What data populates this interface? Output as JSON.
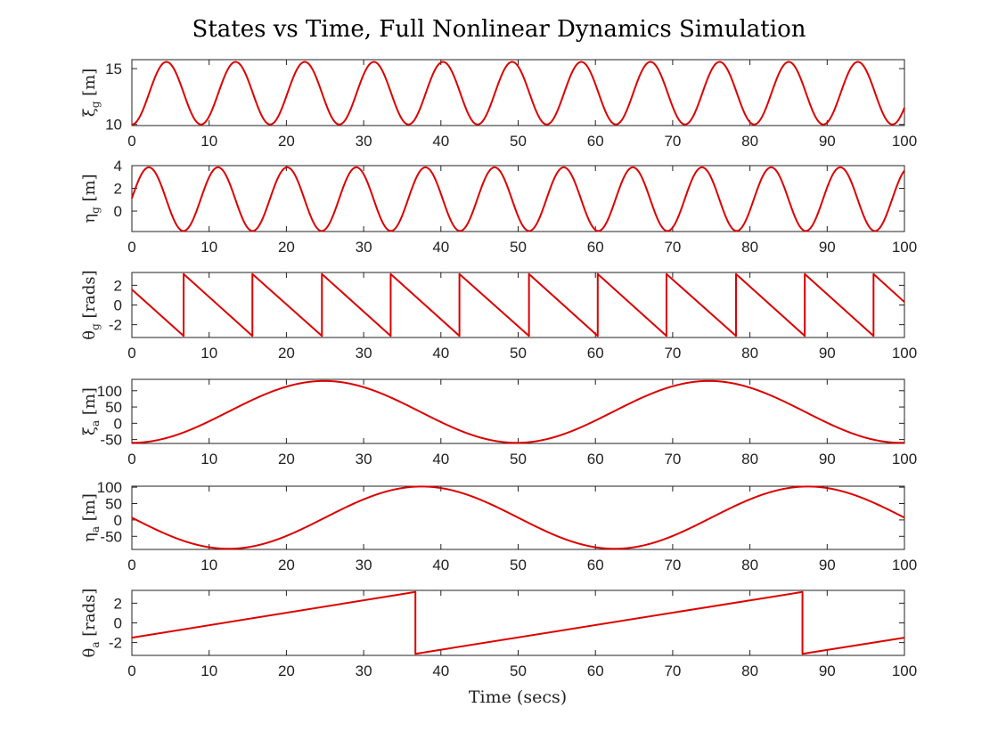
{
  "figure": {
    "title": "States vs Time, Full Nonlinear Dynamics Simulation",
    "xlabel": "Time (secs)",
    "series_color": "#dd0000"
  },
  "chart_data": [
    {
      "type": "line",
      "ylabel": {
        "symbol": "ξ",
        "subscript": "g",
        "unit": "[m]"
      },
      "xlim": [
        0,
        100
      ],
      "ylim": [
        9.9,
        15.8
      ],
      "xticks": [
        0,
        10,
        20,
        30,
        40,
        50,
        60,
        70,
        80,
        90,
        100
      ],
      "yticks": [
        10,
        15
      ],
      "series": [
        {
          "kind": "sine",
          "center": 12.8,
          "amplitude": 2.8,
          "period": 8.95,
          "phase_time": 4.45,
          "start": "trough"
        }
      ],
      "grid": false
    },
    {
      "type": "line",
      "ylabel": {
        "symbol": "η",
        "subscript": "g",
        "unit": "[m]"
      },
      "xlim": [
        0,
        100
      ],
      "ylim": [
        -1.8,
        4
      ],
      "xticks": [
        0,
        10,
        20,
        30,
        40,
        50,
        60,
        70,
        80,
        90,
        100
      ],
      "yticks": [
        0,
        2,
        4
      ],
      "series": [
        {
          "kind": "sine",
          "center": 1.05,
          "amplitude": 2.8,
          "period": 8.95,
          "phase_time": 2.2,
          "start": "peak"
        }
      ],
      "grid": false
    },
    {
      "type": "line",
      "ylabel": {
        "symbol": "θ",
        "subscript": "g",
        "unit": "[rads]"
      },
      "xlim": [
        0,
        100
      ],
      "ylim": [
        -3.3,
        3.3
      ],
      "xticks": [
        0,
        10,
        20,
        30,
        40,
        50,
        60,
        70,
        80,
        90,
        100
      ],
      "yticks": [
        -2,
        0,
        2
      ],
      "series": [
        {
          "kind": "sawtooth",
          "points": [
            [
              0,
              1.57
            ],
            [
              6.7,
              -3.14
            ],
            [
              6.7,
              3.14
            ],
            [
              15.6,
              -3.14
            ],
            [
              15.6,
              3.14
            ],
            [
              24.6,
              -3.14
            ],
            [
              24.6,
              3.14
            ],
            [
              33.5,
              -3.14
            ],
            [
              33.5,
              3.14
            ],
            [
              42.4,
              -3.14
            ],
            [
              42.4,
              3.14
            ],
            [
              51.4,
              -3.14
            ],
            [
              51.4,
              3.14
            ],
            [
              60.3,
              -3.14
            ],
            [
              60.3,
              3.14
            ],
            [
              69.2,
              -3.14
            ],
            [
              69.2,
              3.14
            ],
            [
              78.2,
              -3.14
            ],
            [
              78.2,
              3.14
            ],
            [
              87.1,
              -3.14
            ],
            [
              87.1,
              3.14
            ],
            [
              96.0,
              -3.14
            ],
            [
              96.0,
              3.14
            ],
            [
              100,
              0.3
            ]
          ]
        }
      ],
      "grid": false
    },
    {
      "type": "line",
      "ylabel": {
        "symbol": "ξ",
        "subscript": "a",
        "unit": "[m]"
      },
      "xlim": [
        0,
        100
      ],
      "ylim": [
        -62,
        135
      ],
      "xticks": [
        0,
        10,
        20,
        30,
        40,
        50,
        60,
        70,
        80,
        90,
        100
      ],
      "yticks": [
        -50,
        0,
        50,
        100
      ],
      "series": [
        {
          "kind": "sine",
          "center": 35,
          "amplitude": 95,
          "period": 49.8,
          "phase_time": 24.4,
          "start": "trough"
        }
      ],
      "grid": false
    },
    {
      "type": "line",
      "ylabel": {
        "symbol": "η",
        "subscript": "a",
        "unit": "[m]"
      },
      "xlim": [
        0,
        100
      ],
      "ylim": [
        -90,
        103
      ],
      "xticks": [
        0,
        10,
        20,
        30,
        40,
        50,
        60,
        70,
        80,
        90,
        100
      ],
      "yticks": [
        -50,
        0,
        50,
        100
      ],
      "series": [
        {
          "kind": "sine",
          "center": 7,
          "amplitude": 95,
          "period": 50,
          "phase_time": 36.5,
          "start": "center"
        }
      ],
      "grid": false
    },
    {
      "type": "line",
      "ylabel": {
        "symbol": "θ",
        "subscript": "a",
        "unit": "[rads]"
      },
      "xlim": [
        0,
        100
      ],
      "ylim": [
        -3.3,
        3.3
      ],
      "xticks": [
        0,
        10,
        20,
        30,
        40,
        50,
        60,
        70,
        80,
        90,
        100
      ],
      "yticks": [
        -2,
        0,
        2
      ],
      "series": [
        {
          "kind": "sawtooth",
          "points": [
            [
              0,
              -1.5
            ],
            [
              36.7,
              3.14
            ],
            [
              36.7,
              -3.14
            ],
            [
              86.8,
              3.14
            ],
            [
              86.8,
              -3.14
            ],
            [
              100,
              -1.5
            ]
          ]
        }
      ],
      "grid": false
    }
  ]
}
